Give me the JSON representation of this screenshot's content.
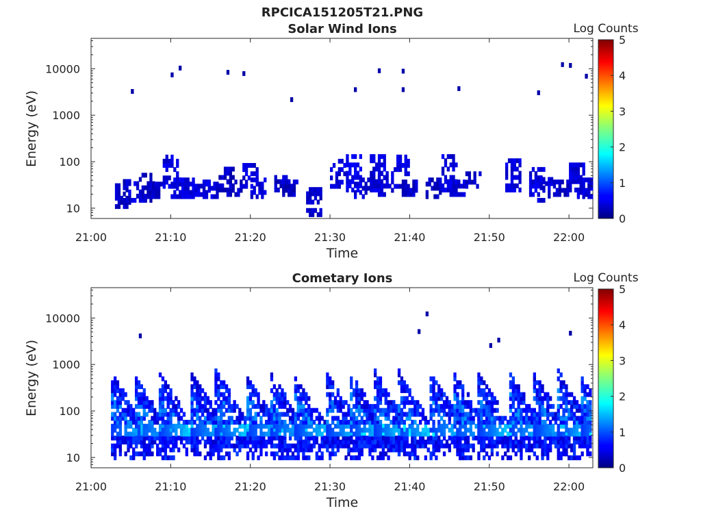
{
  "figure": {
    "title": "RPCICA151205T21.PNG"
  },
  "colors": {
    "data_cells": "jet colormap (0=#000080 dark blue, 1=blue, 2=cyan, 3=yellow, 4=orange, 5=#800000 dark red)",
    "axes": "#262626",
    "background": "#ffffff"
  },
  "chart_data": [
    {
      "type": "heatmap",
      "title": "Solar Wind Ions",
      "xlabel": "Time",
      "ylabel": "Energy (eV)",
      "colorbar_label": "Log Counts",
      "x_range": [
        "21:00",
        "22:03"
      ],
      "x_ticks": [
        "21:00",
        "21:10",
        "21:20",
        "21:30",
        "21:40",
        "21:50",
        "22:00"
      ],
      "y_scale": "log",
      "y_range": [
        6,
        45000
      ],
      "y_ticks": [
        "10",
        "100",
        "1000",
        "10000"
      ],
      "color_range": [
        0,
        5
      ],
      "colorbar_ticks": [
        "0",
        "1",
        "2",
        "3",
        "4",
        "5"
      ],
      "cells": [
        {
          "time": "21:03",
          "energy_min": 11,
          "energy_max": 40,
          "log_counts": 0.2
        },
        {
          "time": "21:04",
          "energy_min": 15,
          "energy_max": 35,
          "log_counts": 0.3
        },
        {
          "time": "21:06",
          "energy_min": 15,
          "energy_max": 60,
          "log_counts": 0.2
        },
        {
          "time": "21:07",
          "energy_min": 18,
          "energy_max": 50,
          "log_counts": 0.2
        },
        {
          "time": "21:09",
          "energy_min": 30,
          "energy_max": 130,
          "log_counts": 0.3
        },
        {
          "time": "21:10",
          "energy_min": 18,
          "energy_max": 45,
          "log_counts": 0.3
        },
        {
          "time": "21:11",
          "energy_min": 18,
          "energy_max": 45,
          "log_counts": 0.3
        },
        {
          "time": "21:13",
          "energy_min": 20,
          "energy_max": 40,
          "log_counts": 0.3
        },
        {
          "time": "21:14",
          "energy_min": 18,
          "energy_max": 40,
          "log_counts": 0.3
        },
        {
          "time": "21:16",
          "energy_min": 25,
          "energy_max": 80,
          "log_counts": 0.2
        },
        {
          "time": "21:17",
          "energy_min": 20,
          "energy_max": 45,
          "log_counts": 0.2
        },
        {
          "time": "21:19",
          "energy_min": 30,
          "energy_max": 90,
          "log_counts": 0.3
        },
        {
          "time": "21:20",
          "energy_min": 18,
          "energy_max": 45,
          "log_counts": 0.3
        },
        {
          "time": "21:23",
          "energy_min": 25,
          "energy_max": 50,
          "log_counts": 0.2
        },
        {
          "time": "21:24",
          "energy_min": 20,
          "energy_max": 45,
          "log_counts": 0.2
        },
        {
          "time": "21:27",
          "energy_min": 6,
          "energy_max": 28,
          "log_counts": 0.2
        },
        {
          "time": "21:30",
          "energy_min": 30,
          "energy_max": 110,
          "log_counts": 0.3
        },
        {
          "time": "21:32",
          "energy_min": 25,
          "energy_max": 150,
          "log_counts": 0.4
        },
        {
          "time": "21:33",
          "energy_min": 18,
          "energy_max": 45,
          "log_counts": 0.3
        },
        {
          "time": "21:35",
          "energy_min": 25,
          "energy_max": 150,
          "log_counts": 0.3
        },
        {
          "time": "21:36",
          "energy_min": 20,
          "energy_max": 60,
          "log_counts": 0.3
        },
        {
          "time": "21:38",
          "energy_min": 30,
          "energy_max": 130,
          "log_counts": 0.3
        },
        {
          "time": "21:39",
          "energy_min": 20,
          "energy_max": 45,
          "log_counts": 0.2
        },
        {
          "time": "21:42",
          "energy_min": 18,
          "energy_max": 45,
          "log_counts": 0.2
        },
        {
          "time": "21:44",
          "energy_min": 25,
          "energy_max": 150,
          "log_counts": 0.3
        },
        {
          "time": "21:45",
          "energy_min": 20,
          "energy_max": 45,
          "log_counts": 0.3
        },
        {
          "time": "21:47",
          "energy_min": 30,
          "energy_max": 60,
          "log_counts": 0.2
        },
        {
          "time": "21:52",
          "energy_min": 25,
          "energy_max": 120,
          "log_counts": 0.3
        },
        {
          "time": "21:55",
          "energy_min": 20,
          "energy_max": 80,
          "log_counts": 0.3
        },
        {
          "time": "21:56",
          "energy_min": 15,
          "energy_max": 45,
          "log_counts": 0.3
        },
        {
          "time": "21:58",
          "energy_min": 20,
          "energy_max": 40,
          "log_counts": 0.2
        },
        {
          "time": "22:00",
          "energy_min": 25,
          "energy_max": 100,
          "log_counts": 0.3
        },
        {
          "time": "22:01",
          "energy_min": 18,
          "energy_max": 45,
          "log_counts": 0.3
        },
        {
          "time": "22:02",
          "energy_min": 20,
          "energy_max": 40,
          "log_counts": 0.2
        }
      ],
      "isolated_points": [
        {
          "time": "21:05",
          "energy": 3300
        },
        {
          "time": "21:10",
          "energy": 7500
        },
        {
          "time": "21:11",
          "energy": 10500
        },
        {
          "time": "21:17",
          "energy": 8500
        },
        {
          "time": "21:19",
          "energy": 8000
        },
        {
          "time": "21:25",
          "energy": 2200
        },
        {
          "time": "21:33",
          "energy": 3600
        },
        {
          "time": "21:36",
          "energy": 9200
        },
        {
          "time": "21:39",
          "energy": 9000
        },
        {
          "time": "21:39",
          "energy": 3600
        },
        {
          "time": "21:46",
          "energy": 3800
        },
        {
          "time": "21:56",
          "energy": 3100
        },
        {
          "time": "21:59",
          "energy": 12500
        },
        {
          "time": "22:00",
          "energy": 12000
        },
        {
          "time": "22:02",
          "energy": 7000
        }
      ]
    },
    {
      "type": "heatmap",
      "title": "Cometary Ions",
      "xlabel": "Time",
      "ylabel": "Energy (eV)",
      "colorbar_label": "Log Counts",
      "x_range": [
        "21:00",
        "22:03"
      ],
      "x_ticks": [
        "21:00",
        "21:10",
        "21:20",
        "21:30",
        "21:40",
        "21:50",
        "22:00"
      ],
      "y_scale": "log",
      "y_range": [
        6,
        45000
      ],
      "y_ticks": [
        "10",
        "100",
        "1000",
        "10000"
      ],
      "color_range": [
        0,
        5
      ],
      "colorbar_ticks": [
        "0",
        "1",
        "2",
        "3",
        "4",
        "5"
      ],
      "bursts": [
        {
          "start": "21:02.5",
          "peak_energy": 650,
          "peak_log_counts": 1.9
        },
        {
          "start": "21:05.5",
          "peak_energy": 550,
          "peak_log_counts": 1.8
        },
        {
          "start": "21:08.5",
          "peak_energy": 700,
          "peak_log_counts": 2.0
        },
        {
          "start": "21:12.5",
          "peak_energy": 700,
          "peak_log_counts": 1.9
        },
        {
          "start": "21:15.5",
          "peak_energy": 900,
          "peak_log_counts": 1.9
        },
        {
          "start": "21:19.5",
          "peak_energy": 600,
          "peak_log_counts": 1.8
        },
        {
          "start": "21:22.5",
          "peak_energy": 650,
          "peak_log_counts": 1.8
        },
        {
          "start": "21:25.5",
          "peak_energy": 600,
          "peak_log_counts": 1.9
        },
        {
          "start": "21:29.5",
          "peak_energy": 700,
          "peak_log_counts": 1.9
        },
        {
          "start": "21:32.5",
          "peak_energy": 700,
          "peak_log_counts": 2.0
        },
        {
          "start": "21:35.5",
          "peak_energy": 800,
          "peak_log_counts": 2.1
        },
        {
          "start": "21:38.5",
          "peak_energy": 750,
          "peak_log_counts": 2.0
        },
        {
          "start": "21:42.5",
          "peak_energy": 700,
          "peak_log_counts": 1.9
        },
        {
          "start": "21:45.5",
          "peak_energy": 650,
          "peak_log_counts": 1.9
        },
        {
          "start": "21:48.5",
          "peak_energy": 700,
          "peak_log_counts": 1.9
        },
        {
          "start": "21:52.5",
          "peak_energy": 650,
          "peak_log_counts": 2.0
        },
        {
          "start": "21:55.5",
          "peak_energy": 700,
          "peak_log_counts": 1.9
        },
        {
          "start": "21:58.5",
          "peak_energy": 800,
          "peak_log_counts": 2.0
        },
        {
          "start": "22:01.5",
          "peak_energy": 600,
          "peak_log_counts": 1.9
        }
      ],
      "isolated_points": [
        {
          "time": "21:06",
          "energy": 4200
        },
        {
          "time": "21:41",
          "energy": 5200
        },
        {
          "time": "21:42",
          "energy": 12500
        },
        {
          "time": "21:51",
          "energy": 3400
        },
        {
          "time": "21:50",
          "energy": 2600
        },
        {
          "time": "22:00",
          "energy": 4800
        }
      ]
    }
  ]
}
